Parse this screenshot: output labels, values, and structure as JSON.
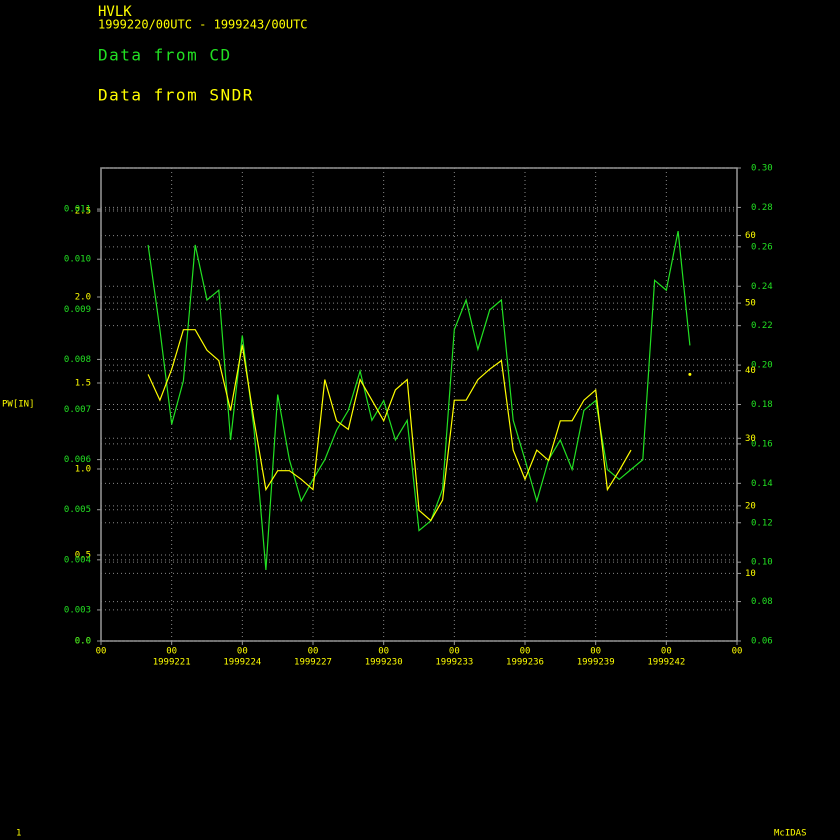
{
  "chart_data": {
    "type": "line",
    "title": "HVLK",
    "subtitle": "1999220/00UTC - 1999243/00UTC",
    "ylabel": "PW[IN]",
    "footer_left": "1",
    "footer_right": "McIDAS",
    "grid": true,
    "x": [
      220.0,
      220.5,
      221.0,
      221.5,
      222.0,
      222.5,
      223.0,
      223.5,
      224.0,
      224.5,
      225.0,
      225.5,
      226.0,
      226.5,
      227.0,
      227.5,
      228.0,
      228.5,
      229.0,
      229.5,
      230.0,
      230.5,
      231.0,
      231.5,
      232.0,
      232.5,
      233.0,
      233.5,
      234.0,
      234.5,
      235.0,
      235.5,
      236.0,
      236.5,
      237.0,
      237.5,
      238.0,
      238.5,
      239.0,
      239.5,
      240.0,
      240.5,
      241.0,
      241.5,
      242.0,
      242.5,
      243.0
    ],
    "xlim": [
      218,
      245
    ],
    "xticks": [
      {
        "value": 218,
        "label": "00"
      },
      {
        "value": 221,
        "label": "00"
      },
      {
        "value": 224,
        "label": "00"
      },
      {
        "value": 227,
        "label": "00"
      },
      {
        "value": 230,
        "label": "00"
      },
      {
        "value": 233,
        "label": "00"
      },
      {
        "value": 236,
        "label": "00"
      },
      {
        "value": 239,
        "label": "00"
      },
      {
        "value": 242,
        "label": "00"
      },
      {
        "value": 245,
        "label": "00"
      }
    ],
    "xtick_dates": [
      {
        "value": 221,
        "label": "1999221"
      },
      {
        "value": 224,
        "label": "1999224"
      },
      {
        "value": 227,
        "label": "1999227"
      },
      {
        "value": 230,
        "label": "1999230"
      },
      {
        "value": 233,
        "label": "1999233"
      },
      {
        "value": 236,
        "label": "1999236"
      },
      {
        "value": 239,
        "label": "1999239"
      },
      {
        "value": 242,
        "label": "1999242"
      }
    ],
    "ylim": [
      0,
      2.75
    ],
    "yticks": [
      {
        "value": 0,
        "label": "0.0"
      },
      0.5,
      {
        "value": 1,
        "label": "1.0"
      },
      1.5,
      {
        "value": 2,
        "label": "2.0"
      },
      2.5
    ],
    "y2lim": [
      0.06,
      0.3
    ],
    "y2ticks": [
      0.06,
      0.08,
      {
        "value": 0.1,
        "label": "0.10"
      },
      0.12,
      0.14,
      0.16,
      0.18,
      {
        "value": 0.2,
        "label": "0.20"
      },
      0.22,
      0.24,
      0.26,
      0.28,
      {
        "value": 0.3,
        "label": "0.30"
      }
    ],
    "y3lim": [
      0.00238,
      0.01182
    ],
    "y3ticks": [
      {
        "value": 0.00238,
        "label": "0.0"
      },
      0.003,
      0.004,
      0.005,
      0.006,
      0.007,
      0.008,
      0.009,
      {
        "value": 0.01,
        "label": "0.010"
      },
      0.011
    ],
    "y4lim": [
      0,
      70
    ],
    "y4ticks": [
      10,
      20,
      30,
      40,
      50,
      60
    ],
    "series": [
      {
        "name": "Data from CD",
        "color": "#22e022",
        "axis": "y2",
        "values": [
          0.261,
          0.218,
          0.17,
          0.192,
          0.261,
          0.233,
          0.238,
          0.162,
          0.215,
          0.167,
          0.096,
          0.185,
          0.152,
          0.131,
          0.142,
          0.152,
          0.167,
          0.177,
          0.197,
          0.172,
          0.182,
          0.162,
          0.172,
          0.116,
          0.121,
          0.137,
          0.218,
          0.233,
          0.208,
          0.228,
          0.233,
          0.172,
          0.152,
          0.131,
          0.152,
          0.162,
          0.147,
          0.177,
          0.182,
          0.147,
          0.142,
          0.147,
          0.152,
          0.243,
          0.238,
          0.268,
          0.21
        ]
      },
      {
        "name": "Data from SNDR",
        "color": "#ffff00",
        "values": [
          1.55,
          1.4,
          1.58,
          1.81,
          1.81,
          1.69,
          1.63,
          1.34,
          1.72,
          1.28,
          0.88,
          0.99,
          0.99,
          0.94,
          0.88,
          1.52,
          1.28,
          1.23,
          1.52,
          1.4,
          1.28,
          1.46,
          1.52,
          0.76,
          0.7,
          0.82,
          1.4,
          1.4,
          1.52,
          1.58,
          1.63,
          1.11,
          0.94,
          1.11,
          1.05,
          1.28,
          1.28,
          1.4,
          1.46,
          0.88,
          0.99,
          1.11,
          null,
          null,
          null,
          null,
          1.55
        ]
      }
    ]
  }
}
